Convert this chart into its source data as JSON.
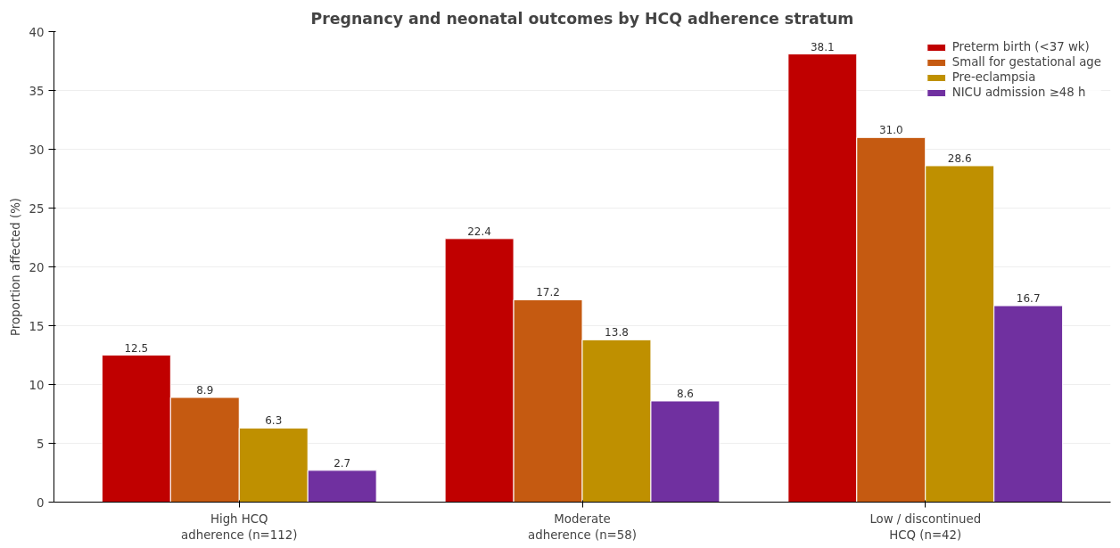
{
  "chart_data": {
    "type": "bar",
    "title": "Pregnancy and neonatal outcomes by HCQ adherence stratum",
    "ylabel": "Proportion affected (%)",
    "categories": [
      "High HCQ\nadherence (n=112)",
      "Moderate\nadherence (n=58)",
      "Low / discontinued\nHCQ (n=42)"
    ],
    "series": [
      {
        "name": "Preterm birth (<37 wk)",
        "color": "#c00000",
        "values": [
          12.5,
          22.4,
          38.1
        ],
        "value_labels": [
          "12.5",
          "22.4",
          "38.1"
        ]
      },
      {
        "name": "Small for gestational age",
        "color": "#c55a11",
        "values": [
          8.9,
          17.2,
          31.0
        ],
        "value_labels": [
          "8.9",
          "17.2",
          "31.0"
        ]
      },
      {
        "name": "Pre-eclampsia",
        "color": "#bf9000",
        "values": [
          6.3,
          13.8,
          28.6
        ],
        "value_labels": [
          "6.3",
          "13.8",
          "28.6"
        ]
      },
      {
        "name": "NICU admission ≥48 h",
        "color": "#7030a0",
        "values": [
          2.7,
          8.6,
          16.7
        ],
        "value_labels": [
          "2.7",
          "8.6",
          "16.7"
        ]
      }
    ],
    "ylim": [
      0,
      40
    ],
    "yticks": [
      0,
      5,
      10,
      15,
      20,
      25,
      30,
      35,
      40
    ],
    "grid": "y",
    "legend": "top right"
  }
}
